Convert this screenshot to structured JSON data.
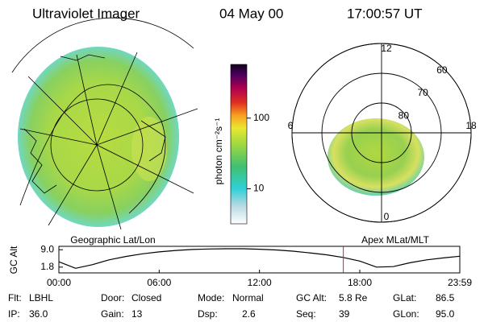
{
  "header": {
    "title": "Ultraviolet Imager",
    "date": "04 May 00",
    "time": "17:00:57 UT"
  },
  "colorbar": {
    "label": "photon cm⁻²s⁻¹",
    "scale": "log",
    "lim": [
      3.2,
      575
    ],
    "ticks": [
      10,
      100
    ]
  },
  "map_label": "Geographic Lat/Lon",
  "polar": {
    "label": "Apex MLat/MLT",
    "rlim": [
      90,
      60
    ],
    "rings": [
      80,
      70,
      60
    ],
    "hours": [
      {
        "value": 12,
        "label": "12"
      },
      {
        "value": 18,
        "label": "18"
      },
      {
        "value": 6,
        "label": "6"
      },
      {
        "value": 0,
        "label": "0"
      }
    ]
  },
  "orbit": {
    "ylabel": "GC Alt",
    "ylim": [
      -0.6,
      10.4
    ],
    "yticks": [
      {
        "value": 9.0,
        "label": "9.0"
      },
      {
        "value": 1.8,
        "label": "1.8"
      }
    ],
    "xlim": [
      0,
      23.983
    ],
    "xticks": [
      {
        "value": 0,
        "label": "00:00"
      },
      {
        "value": 6,
        "label": "06:00"
      },
      {
        "value": 12,
        "label": "12:00"
      },
      {
        "value": 18,
        "label": "18:00"
      },
      {
        "value": 23.983,
        "label": "23:59"
      }
    ],
    "x": [
      0,
      1,
      2,
      3,
      4,
      5,
      6,
      7,
      8,
      9,
      10,
      11,
      12,
      13,
      14,
      15,
      16,
      17,
      18,
      19,
      20,
      21,
      22,
      23,
      23.983
    ],
    "values": [
      4.0,
      1.3,
      2.8,
      4.8,
      6.2,
      7.3,
      8.1,
      8.7,
      9.1,
      9.3,
      9.4,
      9.4,
      9.2,
      8.9,
      8.4,
      7.7,
      6.9,
      5.8,
      4.3,
      1.8,
      2.0,
      3.6,
      4.8,
      5.6,
      6.3
    ],
    "current_time": 17.016,
    "marker_color": "#d62020"
  },
  "status": [
    [
      [
        "Flt:",
        "LBHL"
      ],
      [
        "Door:",
        "Closed"
      ],
      [
        "Mode:",
        "Normal"
      ],
      [
        "GC Alt:",
        "5.8 Re"
      ],
      [
        "GLat:",
        "86.5"
      ]
    ],
    [
      [
        "IP:",
        "36.0"
      ],
      [
        "Gain:",
        "13"
      ],
      [
        "Dsp:",
        "2.6"
      ],
      [
        "Seq:",
        "39"
      ],
      [
        "GLon:",
        "95.0"
      ]
    ]
  ]
}
